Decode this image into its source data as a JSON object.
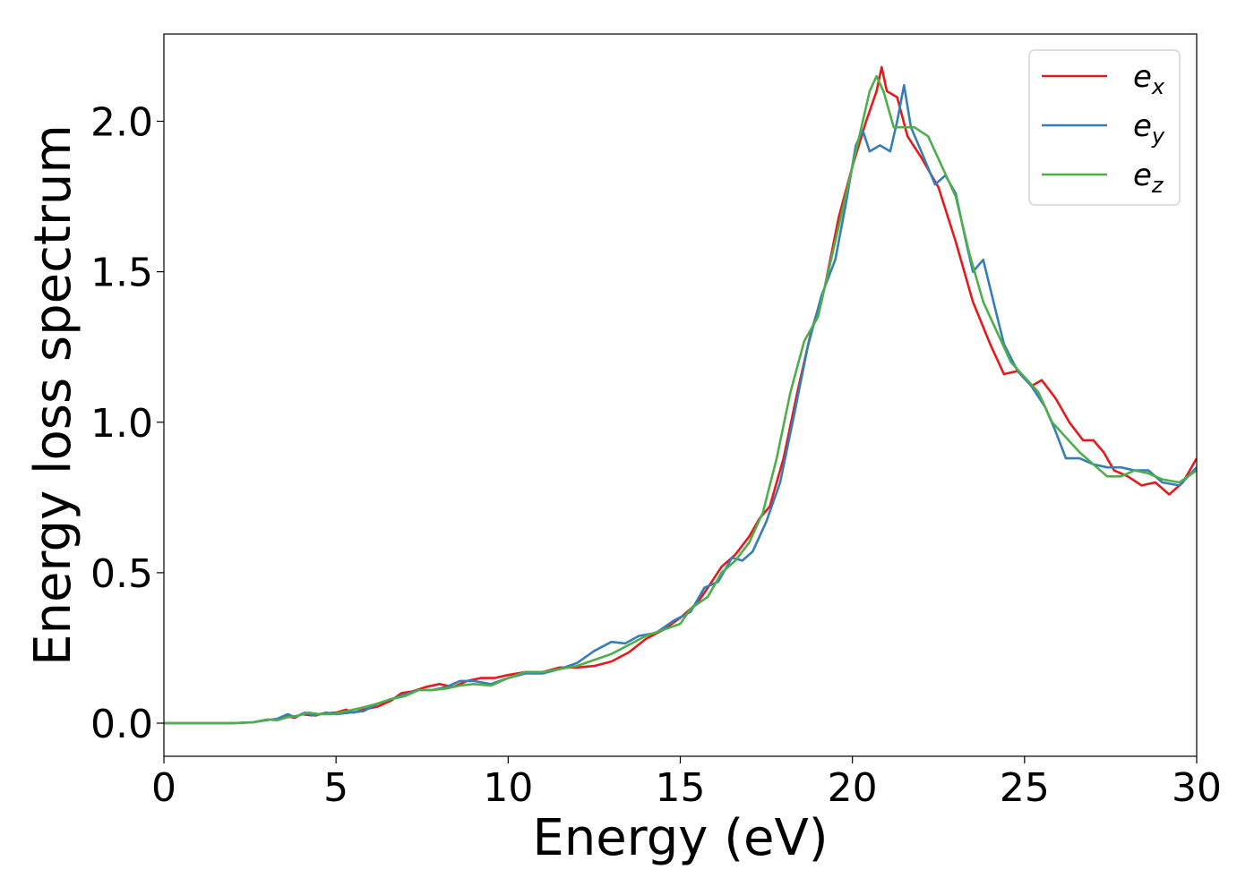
{
  "chart_data": {
    "type": "line",
    "xlabel": "Energy (eV)",
    "ylabel": "Energy loss spectrum",
    "xlim": [
      0,
      30
    ],
    "ylim": [
      -0.11,
      2.29
    ],
    "xticks": [
      0,
      5,
      10,
      15,
      20,
      25,
      30
    ],
    "xtick_labels": [
      "0",
      "5",
      "10",
      "15",
      "20",
      "25",
      "30"
    ],
    "yticks": [
      0.0,
      0.5,
      1.0,
      1.5,
      2.0
    ],
    "ytick_labels": [
      "0.0",
      "0.5",
      "1.0",
      "1.5",
      "2.0"
    ],
    "grid": false,
    "legend_position": "top-right",
    "series": [
      {
        "name": "e_x",
        "label_main": "e",
        "label_sub": "x",
        "color": "#e41a1c",
        "points": [
          [
            0,
            0
          ],
          [
            2,
            0
          ],
          [
            2.6,
            0.003
          ],
          [
            3,
            0.012
          ],
          [
            3.3,
            0.01
          ],
          [
            3.6,
            0.022
          ],
          [
            3.8,
            0.018
          ],
          [
            4,
            0.03
          ],
          [
            4.3,
            0.026
          ],
          [
            4.6,
            0.032
          ],
          [
            5,
            0.035
          ],
          [
            5.3,
            0.045
          ],
          [
            5.5,
            0.035
          ],
          [
            5.8,
            0.045
          ],
          [
            6.2,
            0.055
          ],
          [
            6.6,
            0.075
          ],
          [
            6.9,
            0.1
          ],
          [
            7.2,
            0.105
          ],
          [
            7.6,
            0.12
          ],
          [
            8,
            0.13
          ],
          [
            8.4,
            0.12
          ],
          [
            8.8,
            0.14
          ],
          [
            9.2,
            0.15
          ],
          [
            9.6,
            0.15
          ],
          [
            10,
            0.16
          ],
          [
            10.5,
            0.17
          ],
          [
            11,
            0.17
          ],
          [
            11.5,
            0.185
          ],
          [
            12,
            0.185
          ],
          [
            12.5,
            0.19
          ],
          [
            13,
            0.205
          ],
          [
            13.5,
            0.235
          ],
          [
            14,
            0.28
          ],
          [
            14.5,
            0.31
          ],
          [
            15,
            0.35
          ],
          [
            15.5,
            0.4
          ],
          [
            15.8,
            0.45
          ],
          [
            16.2,
            0.52
          ],
          [
            16.6,
            0.56
          ],
          [
            17,
            0.62
          ],
          [
            17.3,
            0.68
          ],
          [
            17.6,
            0.72
          ],
          [
            18,
            0.88
          ],
          [
            18.4,
            1.1
          ],
          [
            18.8,
            1.3
          ],
          [
            19.2,
            1.45
          ],
          [
            19.6,
            1.68
          ],
          [
            20,
            1.85
          ],
          [
            20.4,
            2.0
          ],
          [
            20.7,
            2.1
          ],
          [
            20.85,
            2.18
          ],
          [
            21,
            2.1
          ],
          [
            21.3,
            2.08
          ],
          [
            21.6,
            1.95
          ],
          [
            22,
            1.88
          ],
          [
            22.5,
            1.78
          ],
          [
            23,
            1.6
          ],
          [
            23.5,
            1.4
          ],
          [
            24,
            1.26
          ],
          [
            24.4,
            1.16
          ],
          [
            24.8,
            1.17
          ],
          [
            25.2,
            1.12
          ],
          [
            25.5,
            1.14
          ],
          [
            25.9,
            1.08
          ],
          [
            26.3,
            1.0
          ],
          [
            26.7,
            0.94
          ],
          [
            27,
            0.94
          ],
          [
            27.3,
            0.9
          ],
          [
            27.6,
            0.84
          ],
          [
            28,
            0.82
          ],
          [
            28.4,
            0.79
          ],
          [
            28.8,
            0.8
          ],
          [
            29.2,
            0.76
          ],
          [
            29.6,
            0.8
          ],
          [
            30,
            0.88
          ]
        ]
      },
      {
        "name": "e_y",
        "label_main": "e",
        "label_sub": "y",
        "color": "#377eb8",
        "points": [
          [
            0,
            0
          ],
          [
            2,
            0
          ],
          [
            2.6,
            0.003
          ],
          [
            3,
            0.01
          ],
          [
            3.3,
            0.015
          ],
          [
            3.6,
            0.03
          ],
          [
            3.8,
            0.02
          ],
          [
            4.1,
            0.035
          ],
          [
            4.4,
            0.025
          ],
          [
            4.7,
            0.035
          ],
          [
            5,
            0.03
          ],
          [
            5.4,
            0.035
          ],
          [
            5.8,
            0.04
          ],
          [
            6.2,
            0.065
          ],
          [
            6.6,
            0.08
          ],
          [
            7,
            0.095
          ],
          [
            7.4,
            0.11
          ],
          [
            7.8,
            0.11
          ],
          [
            8.2,
            0.12
          ],
          [
            8.6,
            0.14
          ],
          [
            9,
            0.14
          ],
          [
            9.5,
            0.13
          ],
          [
            10,
            0.15
          ],
          [
            10.5,
            0.165
          ],
          [
            11,
            0.165
          ],
          [
            11.5,
            0.18
          ],
          [
            12,
            0.2
          ],
          [
            12.5,
            0.24
          ],
          [
            13,
            0.27
          ],
          [
            13.4,
            0.265
          ],
          [
            13.8,
            0.29
          ],
          [
            14.3,
            0.3
          ],
          [
            14.8,
            0.34
          ],
          [
            15.3,
            0.37
          ],
          [
            15.7,
            0.45
          ],
          [
            16.1,
            0.47
          ],
          [
            16.5,
            0.55
          ],
          [
            16.8,
            0.54
          ],
          [
            17.1,
            0.57
          ],
          [
            17.5,
            0.67
          ],
          [
            17.9,
            0.8
          ],
          [
            18.3,
            1.02
          ],
          [
            18.7,
            1.25
          ],
          [
            19.1,
            1.42
          ],
          [
            19.5,
            1.54
          ],
          [
            19.8,
            1.72
          ],
          [
            20.1,
            1.92
          ],
          [
            20.3,
            1.97
          ],
          [
            20.5,
            1.9
          ],
          [
            20.8,
            1.92
          ],
          [
            21.1,
            1.9
          ],
          [
            21.3,
            2.0
          ],
          [
            21.5,
            2.12
          ],
          [
            21.7,
            1.98
          ],
          [
            22,
            1.9
          ],
          [
            22.4,
            1.79
          ],
          [
            22.7,
            1.82
          ],
          [
            23,
            1.76
          ],
          [
            23.3,
            1.6
          ],
          [
            23.5,
            1.5
          ],
          [
            23.8,
            1.54
          ],
          [
            24.1,
            1.4
          ],
          [
            24.4,
            1.26
          ],
          [
            24.8,
            1.17
          ],
          [
            25.2,
            1.12
          ],
          [
            25.6,
            1.05
          ],
          [
            25.9,
            0.97
          ],
          [
            26.2,
            0.88
          ],
          [
            26.6,
            0.88
          ],
          [
            27,
            0.86
          ],
          [
            27.4,
            0.85
          ],
          [
            27.8,
            0.85
          ],
          [
            28.2,
            0.84
          ],
          [
            28.6,
            0.84
          ],
          [
            29,
            0.8
          ],
          [
            29.5,
            0.79
          ],
          [
            30,
            0.85
          ]
        ]
      },
      {
        "name": "e_z",
        "label_main": "e",
        "label_sub": "z",
        "color": "#4daf4a",
        "points": [
          [
            0,
            0
          ],
          [
            2,
            0
          ],
          [
            2.6,
            0.003
          ],
          [
            3,
            0.012
          ],
          [
            3.3,
            0.01
          ],
          [
            3.6,
            0.02
          ],
          [
            3.9,
            0.025
          ],
          [
            4.2,
            0.035
          ],
          [
            4.5,
            0.03
          ],
          [
            4.9,
            0.03
          ],
          [
            5.3,
            0.04
          ],
          [
            5.7,
            0.05
          ],
          [
            6.2,
            0.065
          ],
          [
            6.6,
            0.08
          ],
          [
            7,
            0.09
          ],
          [
            7.4,
            0.11
          ],
          [
            7.8,
            0.11
          ],
          [
            8.2,
            0.115
          ],
          [
            8.6,
            0.125
          ],
          [
            9,
            0.13
          ],
          [
            9.5,
            0.125
          ],
          [
            10,
            0.15
          ],
          [
            10.5,
            0.17
          ],
          [
            11,
            0.17
          ],
          [
            11.5,
            0.18
          ],
          [
            12,
            0.19
          ],
          [
            12.5,
            0.21
          ],
          [
            13,
            0.23
          ],
          [
            13.5,
            0.26
          ],
          [
            14,
            0.29
          ],
          [
            14.5,
            0.31
          ],
          [
            15,
            0.33
          ],
          [
            15.3,
            0.38
          ],
          [
            15.8,
            0.42
          ],
          [
            16.2,
            0.5
          ],
          [
            16.6,
            0.54
          ],
          [
            17,
            0.6
          ],
          [
            17.4,
            0.7
          ],
          [
            17.8,
            0.88
          ],
          [
            18.2,
            1.1
          ],
          [
            18.6,
            1.27
          ],
          [
            19,
            1.35
          ],
          [
            19.4,
            1.55
          ],
          [
            19.8,
            1.75
          ],
          [
            20.2,
            1.95
          ],
          [
            20.5,
            2.1
          ],
          [
            20.7,
            2.15
          ],
          [
            20.9,
            2.1
          ],
          [
            21.2,
            1.98
          ],
          [
            21.5,
            1.98
          ],
          [
            21.8,
            1.98
          ],
          [
            22.2,
            1.95
          ],
          [
            22.6,
            1.85
          ],
          [
            23,
            1.75
          ],
          [
            23.4,
            1.56
          ],
          [
            23.8,
            1.4
          ],
          [
            24.2,
            1.3
          ],
          [
            24.6,
            1.2
          ],
          [
            25,
            1.15
          ],
          [
            25.4,
            1.1
          ],
          [
            25.8,
            1.0
          ],
          [
            26.2,
            0.95
          ],
          [
            26.6,
            0.9
          ],
          [
            27,
            0.86
          ],
          [
            27.4,
            0.82
          ],
          [
            27.8,
            0.82
          ],
          [
            28.2,
            0.84
          ],
          [
            28.6,
            0.83
          ],
          [
            29,
            0.81
          ],
          [
            29.5,
            0.8
          ],
          [
            30,
            0.84
          ]
        ]
      }
    ]
  }
}
